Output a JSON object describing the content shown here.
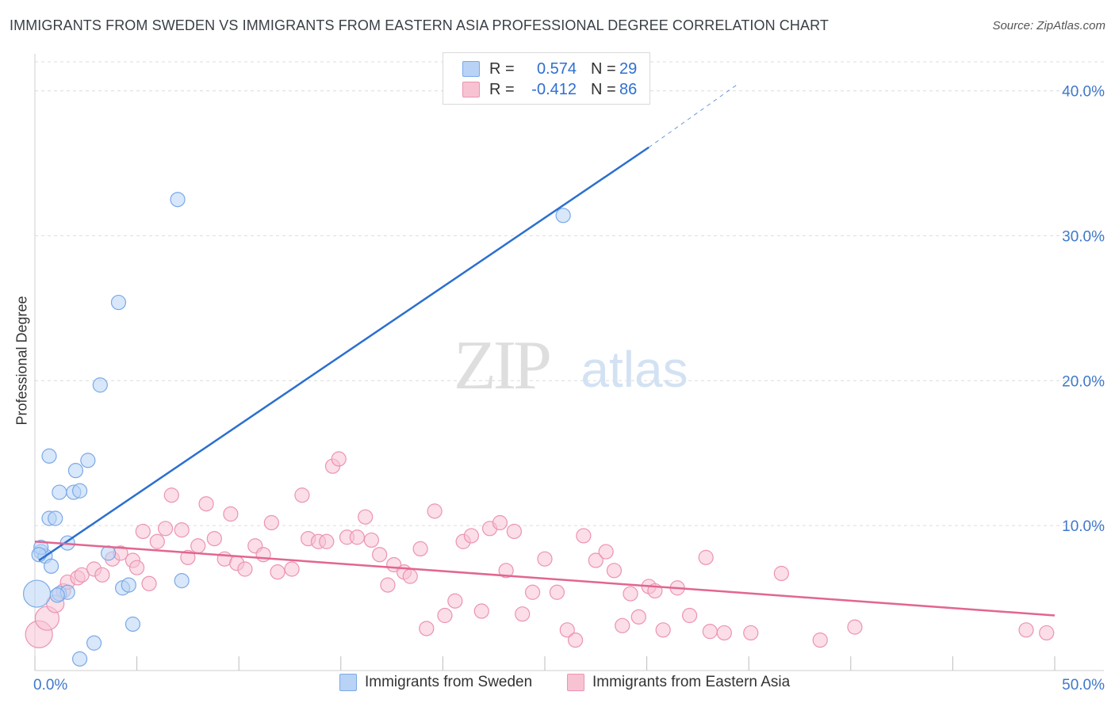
{
  "header": {
    "title": "IMMIGRANTS FROM SWEDEN VS IMMIGRANTS FROM EASTERN ASIA PROFESSIONAL DEGREE CORRELATION CHART",
    "source": "Source: ZipAtlas.com"
  },
  "watermark": {
    "zip": "ZIP",
    "atlas": "atlas"
  },
  "legend": {
    "rows": [
      {
        "r_label": "R =",
        "r_value": "0.574",
        "n_label": "N =",
        "n_value": "29"
      },
      {
        "r_label": "R =",
        "r_value": "-0.412",
        "n_label": "N =",
        "n_value": "86"
      }
    ]
  },
  "colors": {
    "blue_fill": "#b8d3f5",
    "blue_stroke": "#7aa9e6",
    "blue_line": "#2b6fcf",
    "pink_fill": "#f7c3d3",
    "pink_stroke": "#ec93b1",
    "pink_line": "#e2668f",
    "axis_text": "#3f78cc",
    "grid": "#dcdcdc"
  },
  "chart_data": {
    "type": "scatter",
    "title": "IMMIGRANTS FROM SWEDEN VS IMMIGRANTS FROM EASTERN ASIA PROFESSIONAL DEGREE CORRELATION CHART",
    "xlabel": "",
    "ylabel": "Professional Degree",
    "xlim": [
      0,
      50
    ],
    "ylim": [
      0,
      42
    ],
    "x_tick_labels": [
      {
        "value": 0,
        "label": "0.0%"
      },
      {
        "value": 50,
        "label": "50.0%"
      }
    ],
    "y_tick_labels": [
      {
        "value": 10,
        "label": "10.0%"
      },
      {
        "value": 20,
        "label": "20.0%"
      },
      {
        "value": 30,
        "label": "30.0%"
      },
      {
        "value": 40,
        "label": "40.0%"
      }
    ],
    "grid": true,
    "legend_position": "bottom-center",
    "series": [
      {
        "name": "Immigrants from Sweden",
        "color": "#b8d3f5",
        "points": [
          [
            0.1,
            5.3
          ],
          [
            0.3,
            8.2
          ],
          [
            0.5,
            7.9
          ],
          [
            0.7,
            10.5
          ],
          [
            0.8,
            7.2
          ],
          [
            1.0,
            10.5
          ],
          [
            1.2,
            12.3
          ],
          [
            1.6,
            8.8
          ],
          [
            1.9,
            12.3
          ],
          [
            2.0,
            13.8
          ],
          [
            2.2,
            12.4
          ],
          [
            2.6,
            14.5
          ],
          [
            3.2,
            19.7
          ],
          [
            4.1,
            25.4
          ],
          [
            4.3,
            5.7
          ],
          [
            4.6,
            5.9
          ],
          [
            7.0,
            32.5
          ],
          [
            7.2,
            6.2
          ],
          [
            25.9,
            31.4
          ],
          [
            0.7,
            14.8
          ],
          [
            1.2,
            5.3
          ],
          [
            1.6,
            5.4
          ],
          [
            2.2,
            0.8
          ],
          [
            2.9,
            1.9
          ],
          [
            3.6,
            8.1
          ],
          [
            4.8,
            3.2
          ],
          [
            0.3,
            8.5
          ],
          [
            1.1,
            5.2
          ],
          [
            0.2,
            8.0
          ]
        ]
      },
      {
        "name": "Immigrants from Eastern Asia",
        "color": "#f7c3d3",
        "points": [
          [
            0.2,
            2.5
          ],
          [
            0.6,
            3.6
          ],
          [
            1.0,
            4.6
          ],
          [
            1.4,
            5.5
          ],
          [
            1.6,
            6.1
          ],
          [
            2.1,
            6.4
          ],
          [
            2.3,
            6.6
          ],
          [
            2.9,
            7.0
          ],
          [
            3.3,
            6.6
          ],
          [
            3.8,
            7.7
          ],
          [
            4.2,
            8.1
          ],
          [
            4.8,
            7.6
          ],
          [
            5.0,
            7.1
          ],
          [
            5.3,
            9.6
          ],
          [
            5.6,
            6.0
          ],
          [
            6.0,
            8.9
          ],
          [
            6.4,
            9.8
          ],
          [
            6.7,
            12.1
          ],
          [
            7.2,
            9.7
          ],
          [
            7.5,
            7.8
          ],
          [
            8.0,
            8.6
          ],
          [
            8.4,
            11.5
          ],
          [
            8.8,
            9.1
          ],
          [
            9.3,
            7.7
          ],
          [
            9.6,
            10.8
          ],
          [
            9.9,
            7.4
          ],
          [
            10.3,
            7.0
          ],
          [
            10.8,
            8.6
          ],
          [
            11.2,
            8.0
          ],
          [
            11.6,
            10.2
          ],
          [
            11.9,
            6.8
          ],
          [
            12.6,
            7.0
          ],
          [
            13.1,
            12.1
          ],
          [
            13.4,
            9.1
          ],
          [
            13.9,
            8.9
          ],
          [
            14.3,
            8.9
          ],
          [
            14.6,
            14.1
          ],
          [
            14.9,
            14.6
          ],
          [
            15.3,
            9.2
          ],
          [
            15.8,
            9.2
          ],
          [
            16.2,
            10.6
          ],
          [
            16.5,
            9.0
          ],
          [
            16.9,
            8.0
          ],
          [
            17.3,
            5.9
          ],
          [
            17.6,
            7.3
          ],
          [
            18.1,
            6.8
          ],
          [
            18.4,
            6.5
          ],
          [
            18.9,
            8.4
          ],
          [
            19.2,
            2.9
          ],
          [
            19.6,
            11.0
          ],
          [
            20.1,
            3.8
          ],
          [
            20.6,
            4.8
          ],
          [
            21.0,
            8.9
          ],
          [
            21.4,
            9.3
          ],
          [
            21.9,
            4.1
          ],
          [
            22.3,
            9.8
          ],
          [
            22.8,
            10.2
          ],
          [
            23.1,
            6.9
          ],
          [
            23.5,
            9.6
          ],
          [
            23.9,
            3.9
          ],
          [
            24.4,
            5.4
          ],
          [
            25.0,
            7.7
          ],
          [
            25.6,
            5.4
          ],
          [
            26.1,
            2.8
          ],
          [
            26.5,
            2.1
          ],
          [
            26.9,
            9.3
          ],
          [
            27.5,
            7.6
          ],
          [
            28.0,
            8.2
          ],
          [
            28.4,
            6.9
          ],
          [
            28.8,
            3.1
          ],
          [
            29.2,
            5.3
          ],
          [
            29.6,
            3.7
          ],
          [
            30.1,
            5.8
          ],
          [
            30.4,
            5.5
          ],
          [
            30.8,
            2.8
          ],
          [
            31.5,
            5.7
          ],
          [
            32.1,
            3.8
          ],
          [
            32.9,
            7.8
          ],
          [
            33.1,
            2.7
          ],
          [
            33.8,
            2.6
          ],
          [
            35.1,
            2.6
          ],
          [
            36.6,
            6.7
          ],
          [
            38.5,
            2.1
          ],
          [
            40.2,
            3.0
          ],
          [
            48.6,
            2.8
          ],
          [
            49.6,
            2.6
          ]
        ]
      }
    ],
    "trendlines": [
      {
        "series": "Immigrants from Sweden",
        "x": [
          0.2,
          30.1
        ],
        "y": [
          7.6,
          36.1
        ],
        "dashed_extension_to": [
          34.4,
          40.4
        ]
      },
      {
        "series": "Immigrants from Eastern Asia",
        "x": [
          0,
          50
        ],
        "y": [
          8.9,
          3.8
        ]
      }
    ]
  }
}
